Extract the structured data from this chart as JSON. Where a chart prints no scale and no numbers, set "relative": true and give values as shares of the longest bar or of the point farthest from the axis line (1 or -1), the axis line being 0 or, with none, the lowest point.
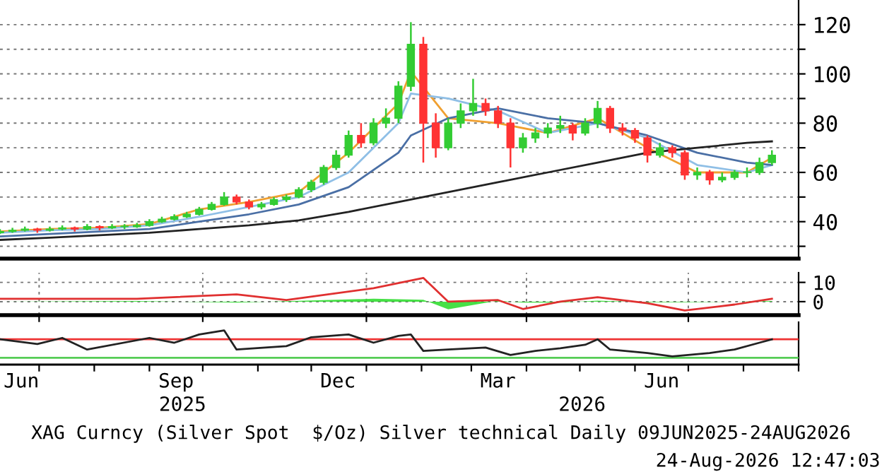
{
  "chart_data": [
    {
      "type": "candlestick",
      "x": [
        "2025-06-09",
        "2025-06-16",
        "2025-06-23",
        "2025-06-30",
        "2025-07-07",
        "2025-07-14",
        "2025-07-21",
        "2025-07-28",
        "2025-08-04",
        "2025-08-11",
        "2025-08-18",
        "2025-08-25",
        "2025-09-01",
        "2025-09-08",
        "2025-09-15",
        "2025-09-22",
        "2025-09-29",
        "2025-10-06",
        "2025-10-13",
        "2025-10-20",
        "2025-10-27",
        "2025-11-03",
        "2025-11-10",
        "2025-11-17",
        "2025-11-24",
        "2025-12-01",
        "2025-12-08",
        "2025-12-15",
        "2025-12-22",
        "2025-12-29",
        "2026-01-05",
        "2026-01-12",
        "2026-01-19",
        "2026-01-26",
        "2026-02-02",
        "2026-02-09",
        "2026-02-16",
        "2026-02-23",
        "2026-03-02",
        "2026-03-09",
        "2026-03-16",
        "2026-03-23",
        "2026-03-30",
        "2026-04-06",
        "2026-04-13",
        "2026-04-20",
        "2026-04-27",
        "2026-05-04",
        "2026-05-11",
        "2026-05-18",
        "2026-05-25",
        "2026-06-01",
        "2026-06-08",
        "2026-06-15",
        "2026-06-22",
        "2026-06-29",
        "2026-07-06",
        "2026-07-13",
        "2026-07-20",
        "2026-07-27",
        "2026-08-03",
        "2026-08-10",
        "2026-08-17"
      ],
      "ohlc": [
        [
          35.5,
          37,
          35,
          36
        ],
        [
          36,
          37.5,
          35.5,
          36.5
        ],
        [
          36.5,
          38,
          36,
          37
        ],
        [
          37,
          37.5,
          35.5,
          36.5
        ],
        [
          36.5,
          38,
          36,
          37
        ],
        [
          37,
          38.5,
          36.5,
          37.5
        ],
        [
          37.5,
          38,
          36,
          37
        ],
        [
          37,
          39,
          36.5,
          38
        ],
        [
          38,
          38.5,
          36.5,
          37.5
        ],
        [
          37.5,
          39,
          37,
          38
        ],
        [
          38,
          39,
          37,
          38
        ],
        [
          38,
          39.5,
          37.5,
          38.5
        ],
        [
          38.5,
          41,
          38,
          40
        ],
        [
          40,
          42,
          39.5,
          41
        ],
        [
          41,
          43,
          40.5,
          42
        ],
        [
          42,
          44,
          41.5,
          43
        ],
        [
          43,
          46,
          42.5,
          45
        ],
        [
          45,
          48,
          44.5,
          47
        ],
        [
          47,
          52,
          46.5,
          50
        ],
        [
          50,
          51,
          47,
          48
        ],
        [
          48,
          49,
          45,
          46
        ],
        [
          46,
          48,
          45,
          47
        ],
        [
          47,
          50,
          46.5,
          49
        ],
        [
          49,
          51,
          48,
          50
        ],
        [
          50,
          54,
          49.5,
          53
        ],
        [
          53,
          57,
          52,
          56
        ],
        [
          56,
          63,
          55,
          62
        ],
        [
          62,
          69,
          61,
          67
        ],
        [
          67,
          77,
          66,
          75
        ],
        [
          75,
          80,
          70,
          72
        ],
        [
          72,
          82,
          71,
          80
        ],
        [
          80,
          86,
          78,
          82
        ],
        [
          82,
          97,
          80,
          95
        ],
        [
          95,
          121,
          93,
          112
        ],
        [
          112,
          115,
          64,
          80
        ],
        [
          80,
          84,
          66,
          70
        ],
        [
          70,
          82,
          69,
          80
        ],
        [
          80,
          88,
          78,
          85
        ],
        [
          85,
          98,
          83,
          88
        ],
        [
          88,
          90,
          83,
          85
        ],
        [
          85,
          87,
          78,
          80
        ],
        [
          80,
          82,
          62,
          70
        ],
        [
          70,
          76,
          68,
          74
        ],
        [
          74,
          78,
          72,
          76
        ],
        [
          76,
          80,
          74,
          78
        ],
        [
          78,
          83,
          76,
          79
        ],
        [
          79,
          80,
          73,
          76
        ],
        [
          76,
          82,
          75,
          80
        ],
        [
          80,
          89,
          78,
          86
        ],
        [
          86,
          87,
          76,
          78
        ],
        [
          78,
          80,
          75,
          77
        ],
        [
          77,
          78,
          72,
          74
        ],
        [
          74,
          75,
          64,
          67
        ],
        [
          67,
          72,
          66,
          70
        ],
        [
          70,
          71,
          66,
          68
        ],
        [
          68,
          69,
          57,
          59
        ],
        [
          59,
          62,
          57,
          60
        ],
        [
          60,
          61,
          55,
          57
        ],
        [
          57,
          60,
          56,
          58
        ],
        [
          58,
          61,
          57,
          60
        ],
        [
          60,
          62,
          58,
          60
        ],
        [
          60,
          66,
          59,
          64
        ],
        [
          64,
          69,
          63,
          67
        ]
      ],
      "colors": [
        "#33cc33",
        "#33cc33",
        "#33cc33",
        "#ff3333",
        "#33cc33",
        "#33cc33",
        "#ff3333",
        "#33cc33",
        "#ff3333",
        "#33cc33",
        "#33cc33",
        "#33cc33",
        "#33cc33",
        "#33cc33",
        "#33cc33",
        "#33cc33",
        "#33cc33",
        "#33cc33",
        "#33cc33",
        "#ff3333",
        "#ff3333",
        "#33cc33",
        "#33cc33",
        "#33cc33",
        "#33cc33",
        "#33cc33",
        "#33cc33",
        "#33cc33",
        "#33cc33",
        "#ff3333",
        "#33cc33",
        "#33cc33",
        "#33cc33",
        "#33cc33",
        "#ff3333",
        "#ff3333",
        "#33cc33",
        "#33cc33",
        "#33cc33",
        "#ff3333",
        "#ff3333",
        "#ff3333",
        "#33cc33",
        "#33cc33",
        "#33cc33",
        "#33cc33",
        "#ff3333",
        "#33cc33",
        "#33cc33",
        "#ff3333",
        "#ff3333",
        "#ff3333",
        "#ff3333",
        "#33cc33",
        "#ff3333",
        "#ff3333",
        "#33cc33",
        "#ff3333",
        "#33cc33",
        "#33cc33",
        "#33cc33",
        "#33cc33",
        "#33cc33"
      ],
      "series": [
        {
          "type": "line",
          "color": "#f0a030",
          "x": [
            "2025-06-09",
            "2025-07-07",
            "2025-08-04",
            "2025-09-01",
            "2025-09-29",
            "2025-10-27",
            "2025-11-24",
            "2025-12-22",
            "2026-01-19",
            "2026-01-26",
            "2026-02-16",
            "2026-03-16",
            "2026-04-13",
            "2026-05-11",
            "2026-06-08",
            "2026-07-06",
            "2026-08-03",
            "2026-08-17"
          ],
          "values": [
            36,
            37,
            37.5,
            39,
            45,
            48,
            52,
            68,
            88,
            101,
            82,
            80,
            76,
            82,
            70,
            60,
            60,
            66
          ]
        },
        {
          "type": "line",
          "color": "#8fbfe6",
          "x": [
            "2025-06-09",
            "2025-07-07",
            "2025-08-04",
            "2025-09-01",
            "2025-09-29",
            "2025-10-27",
            "2025-11-24",
            "2025-12-22",
            "2026-01-19",
            "2026-01-26",
            "2026-02-16",
            "2026-03-16",
            "2026-04-13",
            "2026-05-11",
            "2026-06-08",
            "2026-07-06",
            "2026-08-03",
            "2026-08-17"
          ],
          "values": [
            35.5,
            36.5,
            37,
            38.5,
            42,
            46,
            50,
            60,
            80,
            92,
            90,
            85,
            76,
            80,
            74,
            63,
            60,
            63
          ]
        },
        {
          "type": "line",
          "color": "#4a6fa5",
          "x": [
            "2025-06-09",
            "2025-07-07",
            "2025-08-04",
            "2025-09-01",
            "2025-09-29",
            "2025-10-27",
            "2025-11-24",
            "2025-12-22",
            "2026-01-19",
            "2026-01-26",
            "2026-02-16",
            "2026-03-16",
            "2026-04-13",
            "2026-05-11",
            "2026-06-08",
            "2026-07-06",
            "2026-08-03",
            "2026-08-17"
          ],
          "values": [
            34,
            35,
            36,
            37,
            40,
            43,
            47,
            54,
            68,
            75,
            82,
            86,
            82,
            80,
            75,
            68,
            64,
            63
          ]
        },
        {
          "type": "line",
          "color": "#222222",
          "x": [
            "2025-06-09",
            "2025-07-07",
            "2025-08-04",
            "2025-09-01",
            "2025-09-29",
            "2025-10-27",
            "2025-11-24",
            "2025-12-22",
            "2026-01-19",
            "2026-01-26",
            "2026-02-16",
            "2026-03-16",
            "2026-04-13",
            "2026-05-11",
            "2026-06-08",
            "2026-07-06",
            "2026-08-03",
            "2026-08-17"
          ],
          "values": [
            32.6,
            33.5,
            34.5,
            35.5,
            37,
            38.5,
            40.5,
            44,
            48,
            49,
            52,
            56,
            60,
            64,
            68,
            70,
            72,
            72.6
          ]
        }
      ],
      "xlim": [
        "2025-06-09",
        "2026-09-01"
      ],
      "ylim": [
        25,
        130
      ],
      "yticks": [
        {
          "value": 30,
          "label": null
        },
        40,
        {
          "value": 50,
          "label": null
        },
        60,
        {
          "value": 70,
          "label": null
        },
        80,
        {
          "value": 90,
          "label": null
        },
        100,
        {
          "value": 110,
          "label": null
        },
        120
      ],
      "grid": "y",
      "tick_labels": "y"
    },
    {
      "type": "line",
      "series": [
        {
          "type": "line",
          "color": "#e03030",
          "x": [
            "2025-06-09",
            "2025-08-25",
            "2025-10-20",
            "2025-11-17",
            "2026-01-05",
            "2026-02-02",
            "2026-02-16",
            "2026-03-16",
            "2026-03-30",
            "2026-04-20",
            "2026-05-11",
            "2026-06-08",
            "2026-06-29",
            "2026-07-27",
            "2026-08-17"
          ],
          "values": [
            1.5,
            1.5,
            3.8,
            0.8,
            7,
            12.3,
            0,
            0.8,
            -3.8,
            0,
            2.3,
            -0.8,
            -4.6,
            -1.5,
            1.5
          ]
        },
        {
          "type": "area",
          "color": "#33dd33",
          "x": [
            "2025-06-09",
            "2025-08-25",
            "2025-10-20",
            "2025-11-17",
            "2026-01-05",
            "2026-02-02",
            "2026-02-16",
            "2026-03-16",
            "2026-03-30",
            "2026-04-20",
            "2026-05-11",
            "2026-06-08",
            "2026-06-29",
            "2026-07-27",
            "2026-08-17"
          ],
          "values": [
            0,
            0.3,
            -0.5,
            0.2,
            1.5,
            1,
            -4,
            0.5,
            -0.5,
            -0.5,
            0.5,
            -0.3,
            -0.3,
            0,
            0.3
          ]
        }
      ],
      "xlim": [
        "2025-06-09",
        "2026-09-01"
      ],
      "ylim": [
        -7,
        15
      ],
      "yticks": [
        0,
        10
      ],
      "xticks": [
        {
          "value": "2025-07-01",
          "label": null
        },
        {
          "value": "2025-10-01",
          "label": null
        },
        {
          "value": "2026-01-01",
          "label": null
        },
        {
          "value": "2026-04-01",
          "label": null
        },
        {
          "value": "2026-07-01",
          "label": null
        }
      ],
      "grid": true,
      "tick_labels": "y"
    },
    {
      "type": "line",
      "relative": true,
      "series": [
        {
          "type": "line",
          "color": "#ee3333",
          "x": [
            "2025-06-09",
            "2026-09-01"
          ],
          "values": [
            0.675,
            0.675
          ]
        },
        {
          "type": "line",
          "color": "#55cc55",
          "x": [
            "2025-06-09",
            "2026-09-01"
          ],
          "values": [
            0,
            0
          ]
        },
        {
          "type": "line",
          "color": "#222222",
          "x": [
            "2025-06-09",
            "2025-06-30",
            "2025-07-14",
            "2025-07-28",
            "2025-09-01",
            "2025-09-15",
            "2025-09-29",
            "2025-10-13",
            "2025-10-20",
            "2025-11-17",
            "2025-12-01",
            "2025-12-22",
            "2026-01-05",
            "2026-01-19",
            "2026-01-26",
            "2026-02-02",
            "2026-02-16",
            "2026-03-09",
            "2026-03-23",
            "2026-04-06",
            "2026-04-20",
            "2026-05-04",
            "2026-05-11",
            "2026-05-18",
            "2026-06-08",
            "2026-06-22",
            "2026-07-13",
            "2026-07-27",
            "2026-08-10",
            "2026-08-17"
          ],
          "values": [
            0.675,
            0.5,
            0.725,
            0.3,
            0.725,
            0.55,
            0.85,
            1,
            0.3,
            0.425,
            0.75,
            0.85,
            0.55,
            0.8,
            0.85,
            0.25,
            0.3,
            0.375,
            0.1,
            0.25,
            0.35,
            0.475,
            0.675,
            0.3,
            0.175,
            0.05,
            0.175,
            0.3,
            0.55,
            0.675
          ]
        }
      ],
      "xlim": [
        "2025-06-09",
        "2026-09-01"
      ],
      "xticks": [
        {
          "value": "2025-07-01",
          "label": null
        },
        {
          "value": "2025-08-01",
          "label": null
        },
        {
          "value": "2025-09-01",
          "label": null
        },
        {
          "value": "2025-10-01",
          "label": null
        },
        {
          "value": "2025-11-01",
          "label": null
        },
        {
          "value": "2025-12-01",
          "label": null
        },
        {
          "value": "2026-01-01",
          "label": null
        },
        {
          "value": "2026-02-01",
          "label": null
        },
        {
          "value": "2026-03-01",
          "label": null
        },
        {
          "value": "2026-04-01",
          "label": null
        },
        {
          "value": "2026-05-01",
          "label": null
        },
        {
          "value": "2026-06-01",
          "label": null
        },
        {
          "value": "2026-07-01",
          "label": null
        },
        {
          "value": "2026-08-01",
          "label": null
        },
        {
          "value": "2026-09-01",
          "label": null
        },
        {
          "value": "2025-06-21",
          "label": "Jun"
        },
        {
          "value": "2025-09-16",
          "label": "Sep"
        },
        {
          "value": "2025-12-16",
          "label": "Dec"
        },
        {
          "value": "2026-03-16",
          "label": "Mar"
        },
        {
          "value": "2026-06-16",
          "label": "Jun"
        }
      ],
      "tick_labels": "x",
      "annotations": [
        "2025",
        "2026",
        "XAG Curncy (Silver Spot  $/Oz) Silver technical Daily 09JUN2025-24AUG2026",
        "24-Aug-2026 12:47:03"
      ]
    }
  ]
}
